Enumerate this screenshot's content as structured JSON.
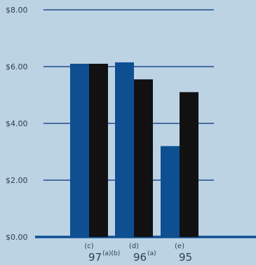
{
  "chart_data": {
    "type": "bar",
    "categories": [
      "97",
      "96",
      "95"
    ],
    "category_superscripts": [
      "(a)(b)",
      "(a)",
      ""
    ],
    "category_notes": [
      "(c)",
      "(d)",
      "(e)"
    ],
    "series": [
      {
        "values": [
          6.1,
          6.15,
          3.2
        ],
        "color": "#0e4f92"
      },
      {
        "values": [
          6.1,
          5.55,
          5.1
        ],
        "color": "#111111"
      }
    ],
    "yticks": [
      "$0.00",
      "$2.00",
      "$4.00",
      "$6.00",
      "$8.00"
    ],
    "ylim": [
      0,
      8
    ],
    "grid": true,
    "title": "",
    "xlabel": "",
    "ylabel": ""
  },
  "colors": {
    "background": "#bcd3e4",
    "gridline": "#1f4e8c",
    "baseline": "#0e4f92",
    "text": "#2c4054"
  }
}
